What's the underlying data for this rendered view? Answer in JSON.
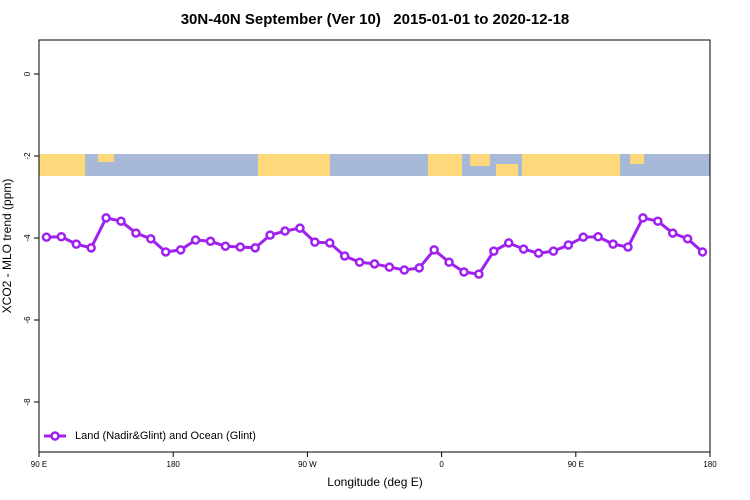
{
  "chart_data": {
    "type": "line",
    "title": "30N-40N September (Ver 10)   2015-01-01 to 2020-12-18",
    "x_label": "Longitude (deg E)",
    "y_label": "XCO2 - MLO trend (ppm)",
    "x": [
      95,
      105,
      115,
      125,
      135,
      145,
      155,
      165,
      175,
      185,
      195,
      205,
      215,
      225,
      235,
      245,
      255,
      265,
      275,
      285,
      295,
      305,
      315,
      325,
      335,
      345,
      355,
      365,
      375,
      385,
      395,
      405,
      415,
      425,
      435,
      445,
      455,
      465,
      475,
      485,
      495,
      505,
      515,
      525,
      535
    ],
    "series": [
      {
        "name": "Land (Nadir&Glint) and Ocean (Glint)",
        "color": "#a020f0",
        "values": [
          -3.98,
          -3.97,
          -4.15,
          -4.24,
          -3.51,
          -3.59,
          -3.88,
          -4.02,
          -4.34,
          -4.29,
          -4.05,
          -4.08,
          -4.2,
          -4.22,
          -4.24,
          -3.93,
          -3.83,
          -3.76,
          -4.1,
          -4.12,
          -4.44,
          -4.59,
          -4.63,
          -4.71,
          -4.78,
          -4.73,
          -4.29,
          -4.59,
          -4.83,
          -4.88,
          -4.32,
          -4.12,
          -4.27,
          -4.37,
          -4.32,
          -4.17,
          -3.98,
          -3.97,
          -4.15,
          -4.22,
          -3.51,
          -3.59,
          -3.88,
          -4.02,
          -4.34
        ]
      }
    ],
    "xlim": [
      90,
      540
    ],
    "xticks": [
      {
        "value": 90,
        "label": "90 E"
      },
      180,
      {
        "value": 270,
        "label": "90 W"
      },
      {
        "value": 360,
        "label": "0"
      },
      {
        "value": 450,
        "label": "90 E"
      },
      {
        "value": 540,
        "label": "180"
      }
    ],
    "ylim": [
      -9.22,
      0.83
    ],
    "yticks": [
      0,
      -2,
      -4,
      -6,
      -8
    ],
    "legend": "bottom-left"
  }
}
